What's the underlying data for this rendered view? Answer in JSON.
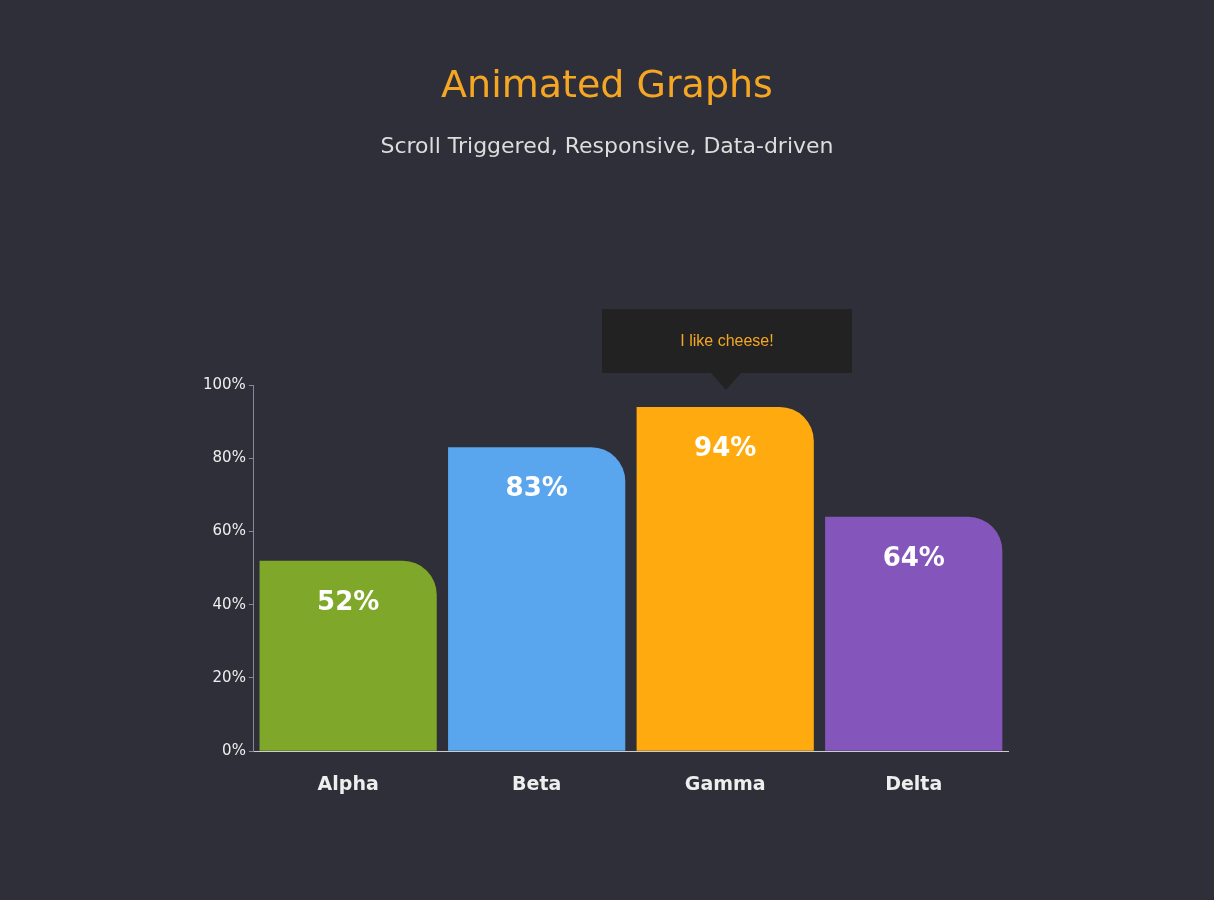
{
  "chart_data": {
    "type": "bar",
    "title": "Animated Graphs",
    "subtitle": "Scroll Triggered, Responsive, Data-driven",
    "categories": [
      "Alpha",
      "Beta",
      "Gamma",
      "Delta"
    ],
    "values": [
      52,
      83,
      94,
      64
    ],
    "colors": [
      "#7fa82a",
      "#5aa6ee",
      "#ffab10",
      "#8456bb"
    ],
    "value_labels": [
      "52%",
      "83%",
      "94%",
      "64%"
    ],
    "ylim": [
      0,
      100
    ],
    "yticks": [
      {
        "value": 0,
        "label": "0%"
      },
      {
        "value": 20,
        "label": "20%"
      },
      {
        "value": 40,
        "label": "40%"
      },
      {
        "value": 60,
        "label": "60%"
      },
      {
        "value": 80,
        "label": "80%"
      },
      {
        "value": 100,
        "label": "100%"
      }
    ],
    "annotations": [
      "I like cheese!"
    ],
    "grid": false,
    "legend": false
  }
}
